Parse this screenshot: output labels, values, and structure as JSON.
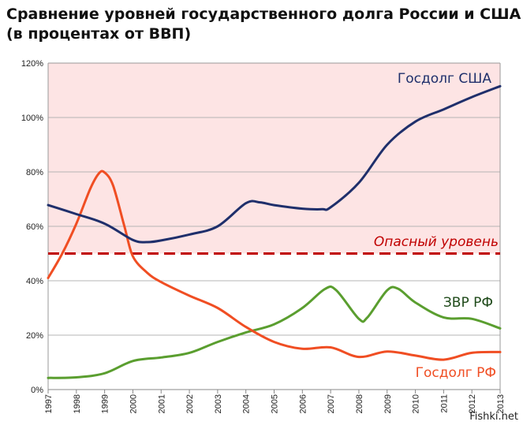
{
  "chart_data": {
    "type": "line",
    "title_lines": [
      "Сравнение уровней государственного долга России и США",
      "(в процентах от ВВП)"
    ],
    "xlabel": "",
    "ylabel": "",
    "xlim": [
      1997,
      2013
    ],
    "ylim": [
      0,
      120
    ],
    "x_ticks": [
      "1997",
      "1998",
      "1999",
      "2000",
      "2001",
      "2002",
      "2003",
      "2004",
      "2005",
      "2006",
      "2007",
      "2008",
      "2009",
      "2010",
      "2011",
      "2012",
      "2013"
    ],
    "y_ticks": [
      0,
      20,
      40,
      60,
      80,
      100,
      120
    ],
    "y_tick_suffix": "%",
    "grid": true,
    "danger_zone": {
      "from": 50,
      "to": 120,
      "color": "#fde4e4"
    },
    "threshold": {
      "value": 50,
      "label": "Опасный уровень",
      "color": "#c00000"
    },
    "series": [
      {
        "name": "Госдолг США",
        "color": "#1f2f6b",
        "points": [
          [
            1997,
            67.8
          ],
          [
            1998,
            64.5
          ],
          [
            1999,
            61
          ],
          [
            2000,
            55
          ],
          [
            2000.5,
            54.2
          ],
          [
            2001,
            54.8
          ],
          [
            2002,
            57
          ],
          [
            2003,
            60
          ],
          [
            2004,
            68.5
          ],
          [
            2004.5,
            68.8
          ],
          [
            2005,
            67.8
          ],
          [
            2006,
            66.5
          ],
          [
            2006.7,
            66.3
          ],
          [
            2007,
            67
          ],
          [
            2008,
            76
          ],
          [
            2009,
            90
          ],
          [
            2010,
            98.5
          ],
          [
            2011,
            103
          ],
          [
            2012,
            107.5
          ],
          [
            2013,
            111.5
          ]
        ]
      },
      {
        "name": "Госдолг РФ",
        "color": "#f04e23",
        "points": [
          [
            1997,
            41
          ],
          [
            1997.5,
            50
          ],
          [
            1998,
            61
          ],
          [
            1998.5,
            74
          ],
          [
            1998.8,
            79.5
          ],
          [
            1999,
            79.8
          ],
          [
            1999.3,
            75
          ],
          [
            1999.7,
            60
          ],
          [
            2000,
            49
          ],
          [
            2000.5,
            43
          ],
          [
            2001,
            39.5
          ],
          [
            2002,
            34.5
          ],
          [
            2003,
            30
          ],
          [
            2004,
            23
          ],
          [
            2005,
            17.5
          ],
          [
            2006,
            15
          ],
          [
            2007,
            15.5
          ],
          [
            2008,
            12
          ],
          [
            2009,
            14
          ],
          [
            2010,
            12.5
          ],
          [
            2011,
            11
          ],
          [
            2012,
            13.5
          ],
          [
            2013,
            13.8
          ]
        ]
      },
      {
        "name": "ЗВР РФ",
        "color": "#5a9e2f",
        "points": [
          [
            1997,
            4.3
          ],
          [
            1998,
            4.5
          ],
          [
            1999,
            6
          ],
          [
            2000,
            10.5
          ],
          [
            2001,
            11.8
          ],
          [
            2002,
            13.5
          ],
          [
            2003,
            17.5
          ],
          [
            2004,
            21
          ],
          [
            2005,
            24
          ],
          [
            2006,
            30
          ],
          [
            2006.8,
            37
          ],
          [
            2007.2,
            36.5
          ],
          [
            2008,
            26
          ],
          [
            2008.3,
            26.5
          ],
          [
            2009,
            36.5
          ],
          [
            2009.4,
            37
          ],
          [
            2010,
            32
          ],
          [
            2011,
            26.5
          ],
          [
            2012,
            26
          ],
          [
            2013,
            22.5
          ]
        ]
      }
    ]
  },
  "watermark": "Fishki.net"
}
